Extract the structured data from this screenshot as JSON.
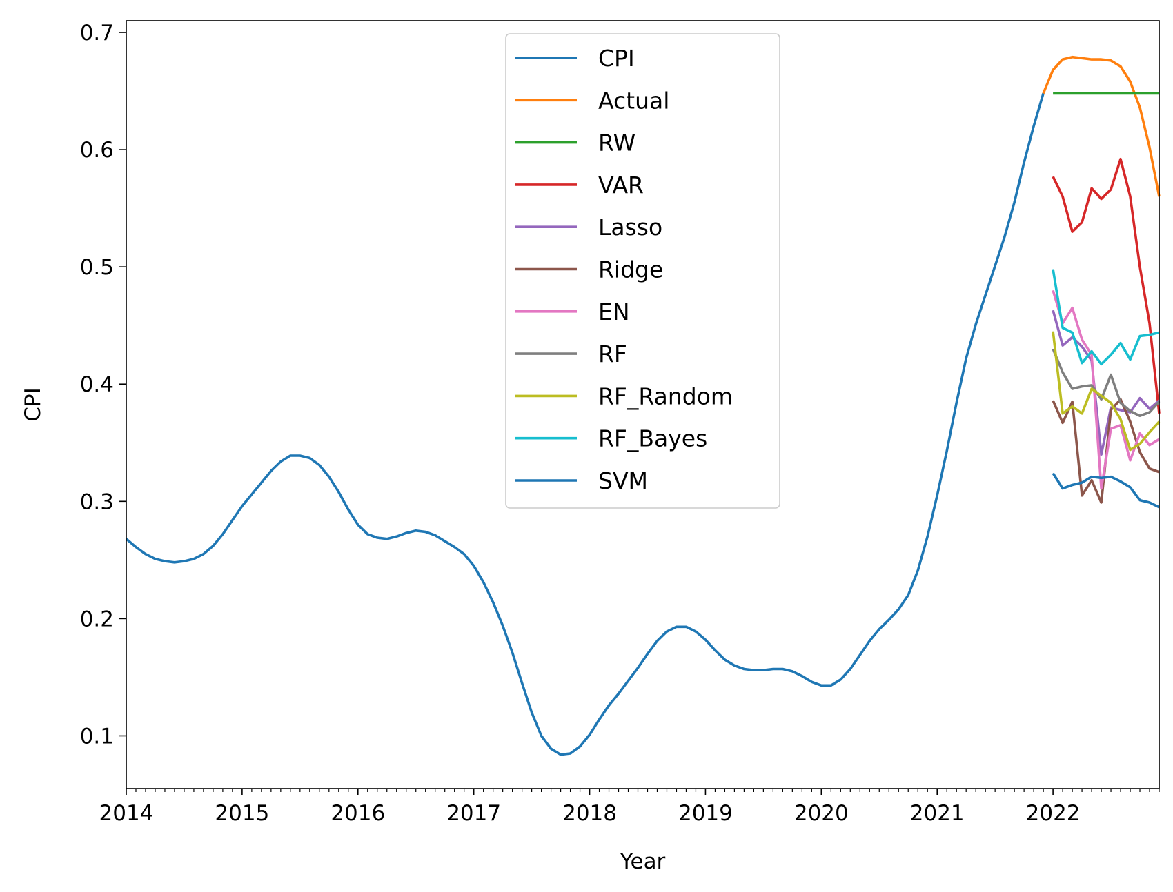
{
  "chart_data": {
    "type": "line",
    "title": "",
    "xlabel": "Year",
    "ylabel": "CPI",
    "xlim": [
      "2014-01",
      "2022-12"
    ],
    "ylim": [
      0.055,
      0.71
    ],
    "x_ticks": [
      "2014",
      "2015",
      "2016",
      "2017",
      "2018",
      "2019",
      "2020",
      "2021",
      "2022"
    ],
    "y_ticks": [
      "0.1",
      "0.2",
      "0.3",
      "0.4",
      "0.5",
      "0.6",
      "0.7"
    ],
    "grid": false,
    "legend": "upper center",
    "series": [
      {
        "name": "CPI",
        "color": "#1f77b4",
        "x": [
          "2014-01",
          "2014-02",
          "2014-03",
          "2014-04",
          "2014-05",
          "2014-06",
          "2014-07",
          "2014-08",
          "2014-09",
          "2014-10",
          "2014-11",
          "2014-12",
          "2015-01",
          "2015-02",
          "2015-03",
          "2015-04",
          "2015-05",
          "2015-06",
          "2015-07",
          "2015-08",
          "2015-09",
          "2015-10",
          "2015-11",
          "2015-12",
          "2016-01",
          "2016-02",
          "2016-03",
          "2016-04",
          "2016-05",
          "2016-06",
          "2016-07",
          "2016-08",
          "2016-09",
          "2016-10",
          "2016-11",
          "2016-12",
          "2017-01",
          "2017-02",
          "2017-03",
          "2017-04",
          "2017-05",
          "2017-06",
          "2017-07",
          "2017-08",
          "2017-09",
          "2017-10",
          "2017-11",
          "2017-12",
          "2018-01",
          "2018-02",
          "2018-03",
          "2018-04",
          "2018-05",
          "2018-06",
          "2018-07",
          "2018-08",
          "2018-09",
          "2018-10",
          "2018-11",
          "2018-12",
          "2019-01",
          "2019-02",
          "2019-03",
          "2019-04",
          "2019-05",
          "2019-06",
          "2019-07",
          "2019-08",
          "2019-09",
          "2019-10",
          "2019-11",
          "2019-12",
          "2020-01",
          "2020-02",
          "2020-03",
          "2020-04",
          "2020-05",
          "2020-06",
          "2020-07",
          "2020-08",
          "2020-09",
          "2020-10",
          "2020-11",
          "2020-12",
          "2021-01",
          "2021-02",
          "2021-03",
          "2021-04",
          "2021-05",
          "2021-06",
          "2021-07",
          "2021-08",
          "2021-09",
          "2021-10",
          "2021-11",
          "2021-12"
        ],
        "values": [
          0.268,
          0.261,
          0.255,
          0.251,
          0.249,
          0.248,
          0.249,
          0.251,
          0.255,
          0.262,
          0.272,
          0.284,
          0.296,
          0.306,
          0.316,
          0.326,
          0.334,
          0.339,
          0.339,
          0.337,
          0.331,
          0.321,
          0.308,
          0.293,
          0.28,
          0.272,
          0.269,
          0.268,
          0.27,
          0.273,
          0.275,
          0.274,
          0.271,
          0.266,
          0.261,
          0.255,
          0.245,
          0.231,
          0.214,
          0.194,
          0.171,
          0.145,
          0.12,
          0.1,
          0.089,
          0.084,
          0.085,
          0.091,
          0.101,
          0.114,
          0.126,
          0.136,
          0.147,
          0.158,
          0.17,
          0.181,
          0.189,
          0.193,
          0.193,
          0.189,
          0.182,
          0.173,
          0.165,
          0.16,
          0.157,
          0.156,
          0.156,
          0.157,
          0.157,
          0.155,
          0.151,
          0.146,
          0.143,
          0.143,
          0.148,
          0.157,
          0.169,
          0.181,
          0.191,
          0.199,
          0.208,
          0.22,
          0.241,
          0.27,
          0.305,
          0.343,
          0.384,
          0.422,
          0.451,
          0.476,
          0.501,
          0.526,
          0.555,
          0.589,
          0.62,
          0.648
        ]
      },
      {
        "name": "Actual",
        "color": "#ff7f0e",
        "x": [
          "2021-12",
          "2022-01",
          "2022-02",
          "2022-03",
          "2022-04",
          "2022-05",
          "2022-06",
          "2022-07",
          "2022-08",
          "2022-09",
          "2022-10",
          "2022-11",
          "2022-12"
        ],
        "values": [
          0.648,
          0.668,
          0.677,
          0.679,
          0.678,
          0.677,
          0.677,
          0.676,
          0.671,
          0.658,
          0.636,
          0.602,
          0.56
        ]
      },
      {
        "name": "RW",
        "color": "#2ca02c",
        "x": [
          "2022-01",
          "2022-02",
          "2022-03",
          "2022-04",
          "2022-05",
          "2022-06",
          "2022-07",
          "2022-08",
          "2022-09",
          "2022-10",
          "2022-11",
          "2022-12"
        ],
        "values": [
          0.648,
          0.648,
          0.648,
          0.648,
          0.648,
          0.648,
          0.648,
          0.648,
          0.648,
          0.648,
          0.648,
          0.648
        ]
      },
      {
        "name": "VAR",
        "color": "#d62728",
        "x": [
          "2022-01",
          "2022-02",
          "2022-03",
          "2022-04",
          "2022-05",
          "2022-06",
          "2022-07",
          "2022-08",
          "2022-09",
          "2022-10",
          "2022-11",
          "2022-12"
        ],
        "values": [
          0.577,
          0.56,
          0.53,
          0.538,
          0.567,
          0.558,
          0.566,
          0.592,
          0.56,
          0.5,
          0.452,
          0.375
        ]
      },
      {
        "name": "Lasso",
        "color": "#9467bd",
        "x": [
          "2022-01",
          "2022-02",
          "2022-03",
          "2022-04",
          "2022-05",
          "2022-06",
          "2022-07",
          "2022-08",
          "2022-09",
          "2022-10",
          "2022-11",
          "2022-12"
        ],
        "values": [
          0.463,
          0.433,
          0.44,
          0.432,
          0.42,
          0.34,
          0.38,
          0.378,
          0.376,
          0.388,
          0.379,
          0.386
        ]
      },
      {
        "name": "Ridge",
        "color": "#8c564b",
        "x": [
          "2022-01",
          "2022-02",
          "2022-03",
          "2022-04",
          "2022-05",
          "2022-06",
          "2022-07",
          "2022-08",
          "2022-09",
          "2022-10",
          "2022-11",
          "2022-12"
        ],
        "values": [
          0.386,
          0.367,
          0.385,
          0.305,
          0.318,
          0.299,
          0.378,
          0.387,
          0.368,
          0.342,
          0.328,
          0.325
        ]
      },
      {
        "name": "EN",
        "color": "#e377c2",
        "x": [
          "2022-01",
          "2022-02",
          "2022-03",
          "2022-04",
          "2022-05",
          "2022-06",
          "2022-07",
          "2022-08",
          "2022-09",
          "2022-10",
          "2022-11",
          "2022-12"
        ],
        "values": [
          0.48,
          0.452,
          0.465,
          0.438,
          0.425,
          0.311,
          0.362,
          0.365,
          0.335,
          0.358,
          0.348,
          0.353
        ]
      },
      {
        "name": "RF",
        "color": "#7f7f7f",
        "x": [
          "2022-01",
          "2022-02",
          "2022-03",
          "2022-04",
          "2022-05",
          "2022-06",
          "2022-07",
          "2022-08",
          "2022-09",
          "2022-10",
          "2022-11",
          "2022-12"
        ],
        "values": [
          0.43,
          0.41,
          0.396,
          0.398,
          0.399,
          0.387,
          0.408,
          0.384,
          0.377,
          0.373,
          0.376,
          0.385
        ]
      },
      {
        "name": "RF_Random",
        "color": "#bcbd22",
        "x": [
          "2022-01",
          "2022-02",
          "2022-03",
          "2022-04",
          "2022-05",
          "2022-06",
          "2022-07",
          "2022-08",
          "2022-09",
          "2022-10",
          "2022-11",
          "2022-12"
        ],
        "values": [
          0.445,
          0.375,
          0.381,
          0.375,
          0.396,
          0.39,
          0.384,
          0.37,
          0.344,
          0.349,
          0.359,
          0.368
        ]
      },
      {
        "name": "RF_Bayes",
        "color": "#17becf",
        "x": [
          "2022-01",
          "2022-02",
          "2022-03",
          "2022-04",
          "2022-05",
          "2022-06",
          "2022-07",
          "2022-08",
          "2022-09",
          "2022-10",
          "2022-11",
          "2022-12"
        ],
        "values": [
          0.498,
          0.448,
          0.444,
          0.418,
          0.428,
          0.417,
          0.425,
          0.435,
          0.421,
          0.441,
          0.442,
          0.444
        ]
      },
      {
        "name": "SVM",
        "color": "#1f77b4",
        "x": [
          "2022-01",
          "2022-02",
          "2022-03",
          "2022-04",
          "2022-05",
          "2022-06",
          "2022-07",
          "2022-08",
          "2022-09",
          "2022-10",
          "2022-11",
          "2022-12"
        ],
        "values": [
          0.324,
          0.311,
          0.314,
          0.316,
          0.321,
          0.32,
          0.321,
          0.317,
          0.312,
          0.301,
          0.299,
          0.295
        ]
      }
    ]
  }
}
